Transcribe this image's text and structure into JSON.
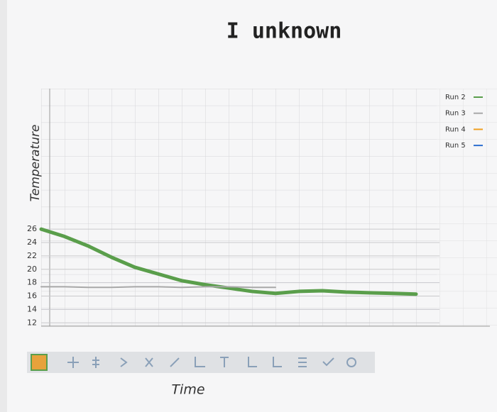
{
  "chart_data": {
    "type": "line",
    "title": "I unknown",
    "y_label": "Temperature",
    "x_label": "Time",
    "x": [
      0,
      10,
      20,
      30,
      40,
      50,
      60,
      70,
      80,
      90,
      100,
      110,
      120,
      130,
      140,
      150,
      160
    ],
    "series": [
      {
        "name": "Run 2",
        "color": "#5a9e4b",
        "values": [
          26,
          24.9,
          23.5,
          21.8,
          20.3,
          19.3,
          18.3,
          17.7,
          17.2,
          16.7,
          16.4,
          16.7,
          16.8,
          16.6,
          16.5,
          16.4,
          16.3
        ]
      },
      {
        "name": "Run 3",
        "color": "#a8a8a8",
        "values": [
          17.4,
          17.4,
          17.3,
          17.3,
          17.4,
          17.4,
          17.3,
          17.4,
          17.4,
          17.3,
          17.3,
          null,
          null,
          null,
          null,
          null,
          null
        ]
      },
      {
        "name": "Run 4",
        "color": "#f0a020",
        "values": [
          null,
          null,
          null,
          null,
          null,
          null,
          null,
          null,
          null,
          null,
          null,
          null,
          null,
          null,
          null,
          null,
          null
        ]
      },
      {
        "name": "Run 5",
        "color": "#2e6fd0",
        "values": [
          null,
          null,
          null,
          null,
          null,
          null,
          null,
          null,
          null,
          null,
          null,
          null,
          null,
          null,
          null,
          null,
          null
        ]
      }
    ],
    "xlim": [
      0,
      170
    ],
    "ylim": [
      11.5,
      47
    ],
    "yticks": [
      12,
      14,
      16,
      18,
      20,
      22,
      24,
      26
    ],
    "grid": true
  }
}
